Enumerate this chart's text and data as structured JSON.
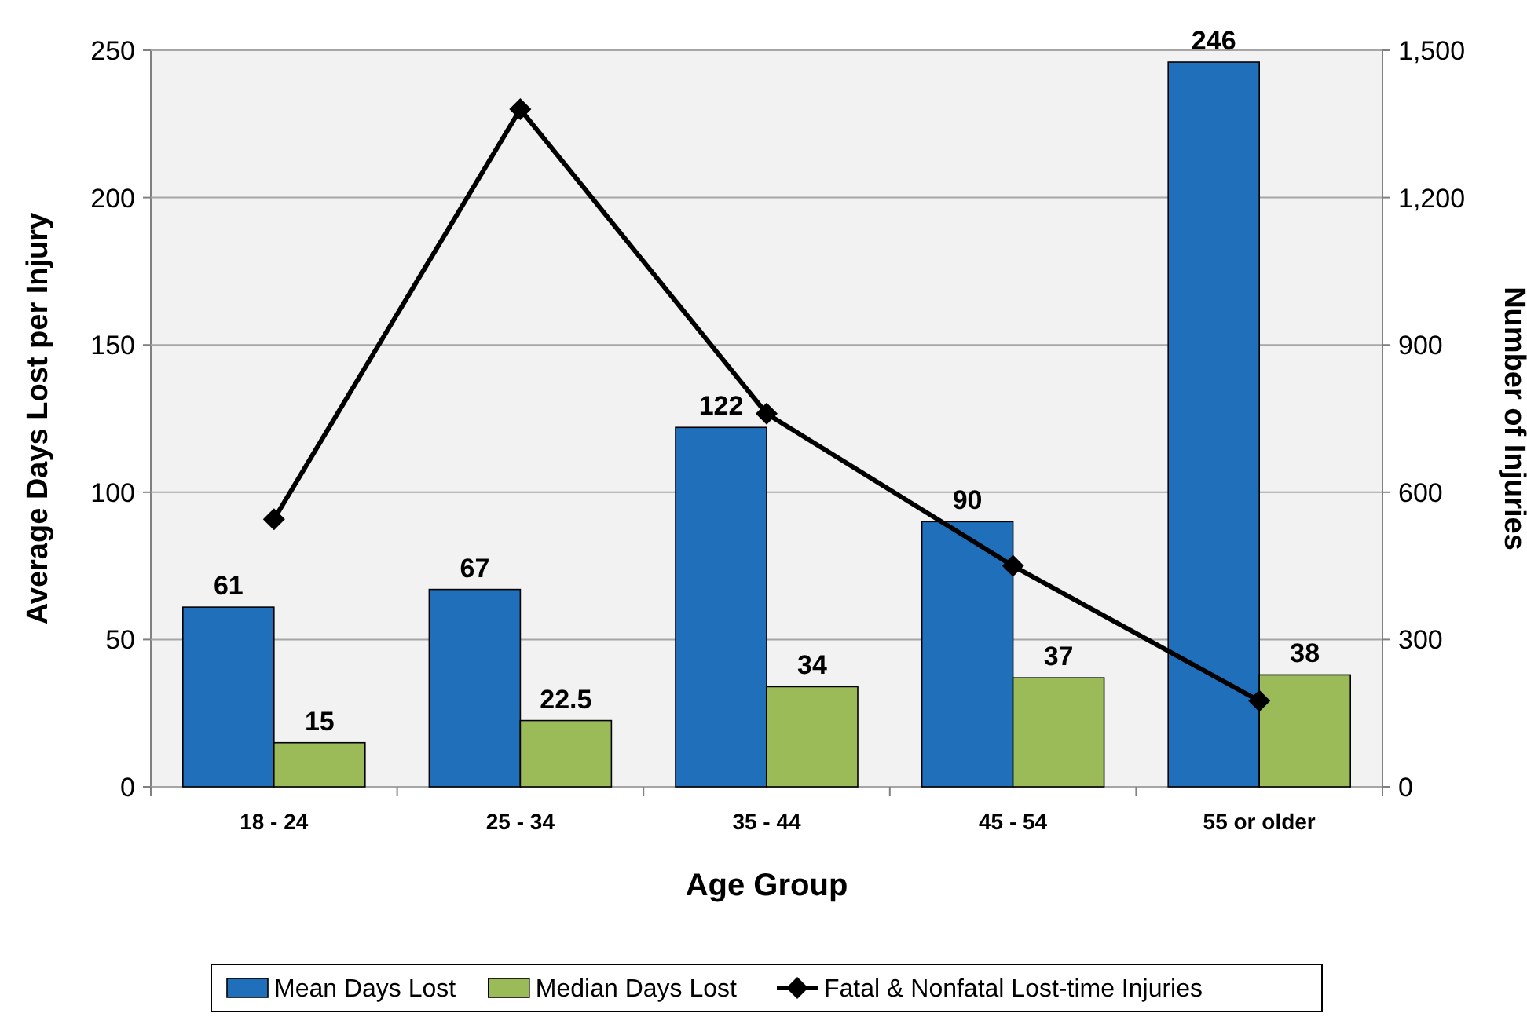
{
  "chart_data": {
    "type": "bar",
    "xlabel": "Age Group",
    "ylabel": "Average Days Lost per Injury",
    "y2label": "Number of Injuries",
    "categories": [
      "18 - 24",
      "25 - 34",
      "35 - 44",
      "45 - 54",
      "55 or older"
    ],
    "series": [
      {
        "name": "Mean Days Lost",
        "color": "#1f6fba",
        "values": [
          61,
          67,
          122,
          90,
          246
        ],
        "value_labels": [
          "61",
          "67",
          "122",
          "90",
          "246"
        ]
      },
      {
        "name": "Median Days Lost",
        "color": "#9bbb59",
        "values": [
          15,
          22.5,
          34,
          37,
          38
        ],
        "value_labels": [
          "15",
          "22.5",
          "34",
          "37",
          "38"
        ]
      },
      {
        "name": "Fatal & Nonfatal Lost-time Injuries",
        "type": "line",
        "axis": "y2",
        "color": "#000000",
        "marker": "diamond",
        "values": [
          545,
          1380,
          760,
          450,
          175
        ]
      }
    ],
    "ylim": [
      0,
      250
    ],
    "yticks": [
      0,
      50,
      100,
      150,
      200,
      250
    ],
    "y2lim": [
      0,
      1500
    ],
    "y2ticks": [
      0,
      {
        "value": 300,
        "label": "300"
      },
      {
        "value": 600,
        "label": "600"
      },
      {
        "value": 900,
        "label": "900"
      },
      {
        "value": 1200,
        "label": "1,200"
      },
      {
        "value": 1500,
        "label": "1,500"
      }
    ],
    "grid": "y",
    "legend": "bottom"
  }
}
